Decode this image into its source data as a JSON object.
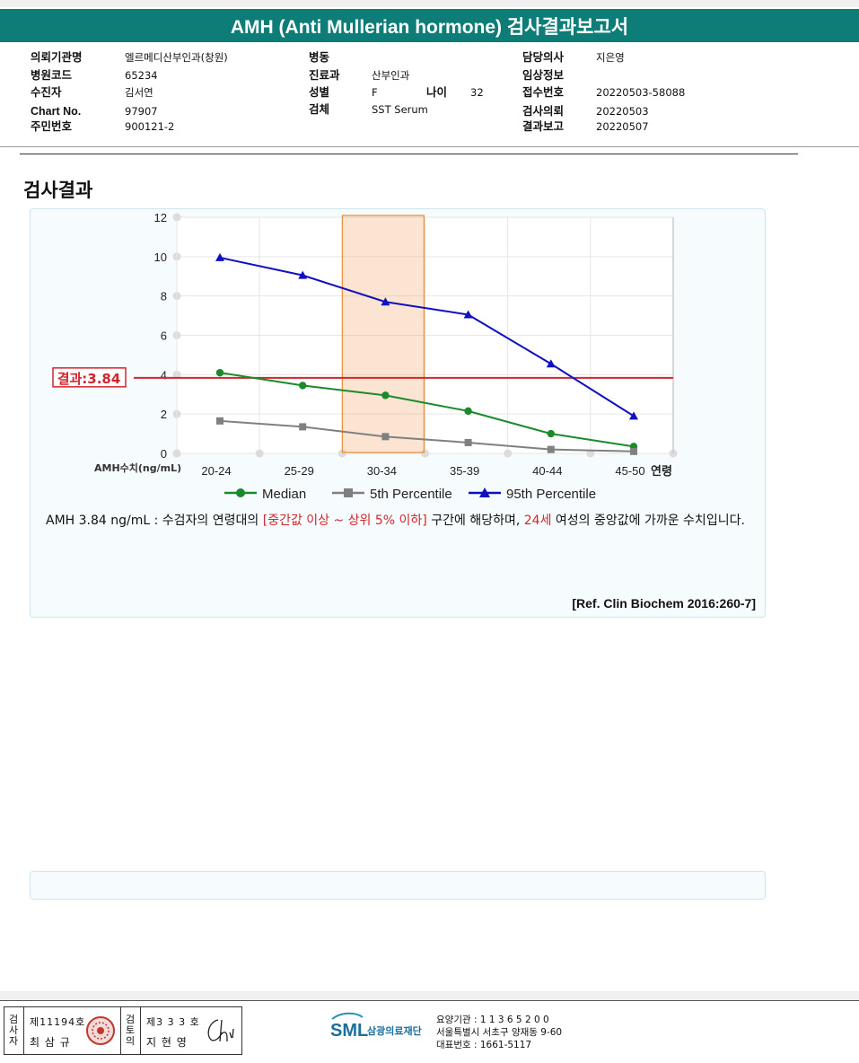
{
  "report": {
    "title": "AMH (Anti Mullerian hormone) 검사결과보고서"
  },
  "header_fields": [
    {
      "label": "의뢰기관명",
      "value": "엘르메디산부인과(창원)"
    },
    {
      "label": "병원코드",
      "value": "65234"
    },
    {
      "label": "수진자",
      "value": "김서연"
    },
    {
      "label": "Chart No.",
      "value": "97907"
    },
    {
      "label": "주민번호",
      "value": "900121-2"
    },
    {
      "label": "병동",
      "value": ""
    },
    {
      "label": "진료과",
      "value": "산부인과"
    },
    {
      "label": "성별",
      "value": "F"
    },
    {
      "label": "나이",
      "value": "32"
    },
    {
      "label": "검체",
      "value": "SST Serum"
    },
    {
      "label": "담당의사",
      "value": "지은영"
    },
    {
      "label": "임상정보",
      "value": ""
    },
    {
      "label": "접수번호",
      "value": "20220503-58088"
    },
    {
      "label": "검사의뢰",
      "value": "20220503"
    },
    {
      "label": "결과보고",
      "value": "20220507"
    }
  ],
  "section": {
    "title": "검사결과"
  },
  "chart_data": {
    "type": "line",
    "categories": [
      "20-24",
      "25-29",
      "30-34",
      "35-39",
      "40-44",
      "45-50"
    ],
    "x_axis_suffix": "연령",
    "ylabel": "AMH수치(ng/mL)",
    "ylim": [
      0,
      12
    ],
    "yticks": [
      0,
      2,
      4,
      6,
      8,
      10,
      12
    ],
    "grid": true,
    "highlight_category": "30-34",
    "highlight_color": "#f5a46c",
    "series": [
      {
        "name": "Median",
        "values": [
          4.1,
          3.45,
          2.95,
          2.15,
          1.0,
          0.35
        ],
        "color": "#1a8a2a",
        "marker": "circle"
      },
      {
        "name": "5th Percentile",
        "values": [
          1.65,
          1.35,
          0.85,
          0.55,
          0.2,
          0.1
        ],
        "color": "#808080",
        "marker": "square"
      },
      {
        "name": "95th Percentile",
        "values": [
          9.95,
          9.05,
          7.7,
          7.05,
          4.55,
          1.9
        ],
        "color": "#1010c0",
        "marker": "triangle"
      }
    ],
    "result_line": {
      "label": "결과:3.84",
      "value": 3.84,
      "color": "#d0262d"
    },
    "legend_placement": "bottom"
  },
  "comment": {
    "part1": "AMH  3.84 ng/mL : 수검자의 연령대의 ",
    "highlight1": "[중간값 이상 ~ 상위 5% 이하]",
    "part2": "  구간에 해당하며, ",
    "highlight2": "24세",
    "part3": " 여성의 중앙값에 가까운 수치입니다."
  },
  "reference": "[Ref. Clin Biochem 2016:260-7]",
  "footer": {
    "inspector_label": "검사자",
    "inspector_no": "제11194호",
    "inspector_name": "최 삼 규",
    "reviewer_label": "검토의",
    "reviewer_no": "제3 3 3 호",
    "reviewer_name": "지 현 영",
    "org_abbr": "SML",
    "org_name": "삼광의료재단",
    "code": "요양기관 : 1 1 3 6 5 2 0 0",
    "address": "서울특별시 서초구 양재동 9-60",
    "phone": "대표번호 : 1661-5117"
  }
}
